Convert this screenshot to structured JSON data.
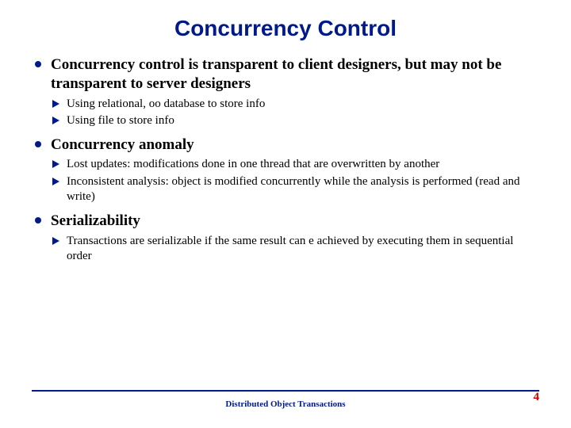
{
  "colors": {
    "title": "#001a8a",
    "bullet": "#001a8a",
    "footer_line": "#001a8a",
    "footer_text": "#001a8a",
    "page_num": "#cc0000",
    "body_text": "#000000",
    "background": "#ffffff"
  },
  "typography": {
    "title_family": "Arial, Helvetica, sans-serif",
    "body_family": "Times New Roman, Times, serif",
    "title_size_pt": 28,
    "level1_size_pt": 19,
    "level2_size_pt": 15,
    "footer_size_pt": 11,
    "pagenum_size_pt": 15
  },
  "title": "Concurrency Control",
  "bullets": [
    {
      "text": "Concurrency control is transparent to client designers, but may not be transparent to server designers",
      "sub": [
        "Using relational, oo database to store info",
        "Using file to store info"
      ]
    },
    {
      "text": "Concurrency anomaly",
      "sub": [
        "Lost updates: modifications done in one thread that are overwritten by another",
        "Inconsistent analysis: object is modified concurrently while the analysis is performed (read and write)"
      ]
    },
    {
      "text": "Serializability",
      "sub": [
        "Transactions are serializable if the same result can e achieved by executing them in sequential order"
      ]
    }
  ],
  "footer": "Distributed Object Transactions",
  "page_number": "4"
}
